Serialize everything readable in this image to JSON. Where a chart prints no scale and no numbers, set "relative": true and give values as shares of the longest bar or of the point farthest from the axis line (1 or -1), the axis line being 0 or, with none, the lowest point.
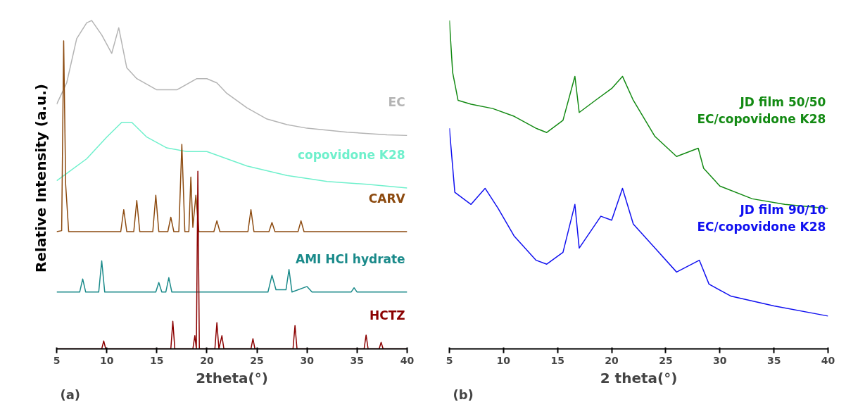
{
  "chart_data": [
    {
      "type": "line",
      "relative": true,
      "xlabel": "2theta(°)",
      "ylabel": "Relative Intensity (a.u.)",
      "xlim": [
        5,
        40
      ],
      "xticks": [
        5,
        10,
        15,
        20,
        25,
        30,
        35,
        40
      ],
      "tick_labels": "x",
      "grid": false,
      "annotations": [
        "(a)"
      ],
      "series": [
        {
          "name": "EC",
          "color": "#b4b4b4",
          "x": [
            5,
            6,
            7,
            8,
            8.5,
            9.5,
            10.5,
            11.2,
            12,
            13,
            15,
            17,
            19,
            20,
            21,
            22,
            24,
            26,
            28,
            30,
            34,
            38,
            40
          ],
          "values": [
            0.745,
            0.81,
            0.945,
            0.993,
            1.0,
            0.956,
            0.9,
            0.978,
            0.856,
            0.823,
            0.789,
            0.789,
            0.823,
            0.823,
            0.81,
            0.778,
            0.734,
            0.7,
            0.683,
            0.672,
            0.66,
            0.652,
            0.65
          ]
        },
        {
          "name": "copovidone K28",
          "color": "#6ff0cc",
          "x": [
            5,
            6,
            8,
            10,
            11.5,
            12.5,
            14,
            16,
            18,
            20,
            22,
            24,
            28,
            32,
            36,
            40
          ],
          "values": [
            0.512,
            0.534,
            0.579,
            0.645,
            0.69,
            0.69,
            0.645,
            0.612,
            0.601,
            0.601,
            0.579,
            0.557,
            0.528,
            0.51,
            0.501,
            0.49
          ]
        },
        {
          "name": "CARV",
          "color": "#8c4a0f",
          "x": [
            5,
            5.5,
            5.7,
            5.9,
            6.2,
            11.4,
            11.7,
            12,
            12.7,
            13,
            13.3,
            14.6,
            14.9,
            15.2,
            16.1,
            16.4,
            16.7,
            17.2,
            17.5,
            17.8,
            18.2,
            18.4,
            18.6,
            18.9,
            19.2,
            20.7,
            21,
            21.3,
            24.1,
            24.4,
            24.7,
            26.2,
            26.5,
            26.8,
            29.1,
            29.4,
            29.7,
            40
          ],
          "values": [
            0.357,
            0.36,
            0.938,
            0.5,
            0.357,
            0.357,
            0.424,
            0.357,
            0.357,
            0.452,
            0.357,
            0.357,
            0.468,
            0.357,
            0.357,
            0.401,
            0.357,
            0.357,
            0.623,
            0.357,
            0.357,
            0.523,
            0.37,
            0.468,
            0.357,
            0.357,
            0.39,
            0.357,
            0.357,
            0.424,
            0.357,
            0.357,
            0.385,
            0.357,
            0.357,
            0.39,
            0.357,
            0.357
          ]
        },
        {
          "name": "AMI HCl hydrate",
          "color": "#1a8a8a",
          "x": [
            5,
            7.3,
            7.6,
            7.9,
            9.2,
            9.5,
            9.8,
            14.9,
            15.2,
            15.5,
            15.9,
            16.2,
            16.5,
            26.1,
            26.5,
            26.9,
            27.9,
            28.2,
            28.5,
            30,
            30.5,
            34.4,
            34.7,
            35,
            40
          ],
          "values": [
            0.173,
            0.173,
            0.213,
            0.173,
            0.173,
            0.268,
            0.173,
            0.173,
            0.202,
            0.173,
            0.173,
            0.217,
            0.173,
            0.173,
            0.224,
            0.18,
            0.18,
            0.242,
            0.173,
            0.19,
            0.173,
            0.173,
            0.186,
            0.173,
            0.173
          ]
        },
        {
          "name": "HCTZ",
          "color": "#8b0000",
          "x": [
            5,
            9.5,
            9.7,
            9.9,
            16.4,
            16.6,
            16.8,
            18.6,
            18.8,
            18.95,
            19.1,
            19.25,
            20.8,
            21,
            21.2,
            21.5,
            21.7,
            24.4,
            24.6,
            24.8,
            28.6,
            28.8,
            29,
            35.7,
            35.9,
            36.1,
            37.2,
            37.4,
            37.6,
            40
          ],
          "values": [
            0,
            0,
            0.024,
            0,
            0,
            0.084,
            0,
            0,
            0.04,
            0,
            0.541,
            0,
            0,
            0.08,
            0,
            0.04,
            0,
            0,
            0.031,
            0,
            0,
            0.071,
            0,
            0,
            0.042,
            0,
            0,
            0.02,
            0,
            0
          ]
        }
      ]
    },
    {
      "type": "line",
      "relative": true,
      "xlabel": "2 theta(°)",
      "xlim": [
        5,
        40
      ],
      "xticks": [
        5,
        10,
        15,
        20,
        25,
        30,
        35,
        40
      ],
      "tick_labels": "x",
      "grid": false,
      "annotations": [
        "(b)"
      ],
      "series": [
        {
          "name": "JD film 50/50\nEC/copovidone K28",
          "color": "#138a13",
          "x": [
            5,
            5.3,
            5.8,
            7,
            9,
            11,
            13,
            14,
            15.5,
            16.6,
            17,
            18.5,
            20,
            21,
            22,
            24,
            26,
            28,
            28.5,
            30,
            33,
            36,
            40
          ],
          "values": [
            1.0,
            0.842,
            0.757,
            0.745,
            0.732,
            0.708,
            0.672,
            0.659,
            0.696,
            0.83,
            0.72,
            0.757,
            0.793,
            0.83,
            0.757,
            0.647,
            0.586,
            0.611,
            0.55,
            0.496,
            0.457,
            0.44,
            0.428
          ]
        },
        {
          "name": "JD film 90/10\nEC/copovidone K28",
          "color": "#1010f0",
          "x": [
            5,
            5.5,
            7,
            8.3,
            9.5,
            11,
            13,
            14,
            15.5,
            16.6,
            17,
            19,
            20,
            21,
            22,
            24,
            26,
            28.1,
            29,
            31,
            35,
            40
          ],
          "values": [
            0.672,
            0.477,
            0.44,
            0.489,
            0.428,
            0.343,
            0.27,
            0.258,
            0.294,
            0.44,
            0.307,
            0.404,
            0.392,
            0.489,
            0.38,
            0.307,
            0.234,
            0.27,
            0.197,
            0.161,
            0.131,
            0.1
          ]
        }
      ]
    }
  ]
}
